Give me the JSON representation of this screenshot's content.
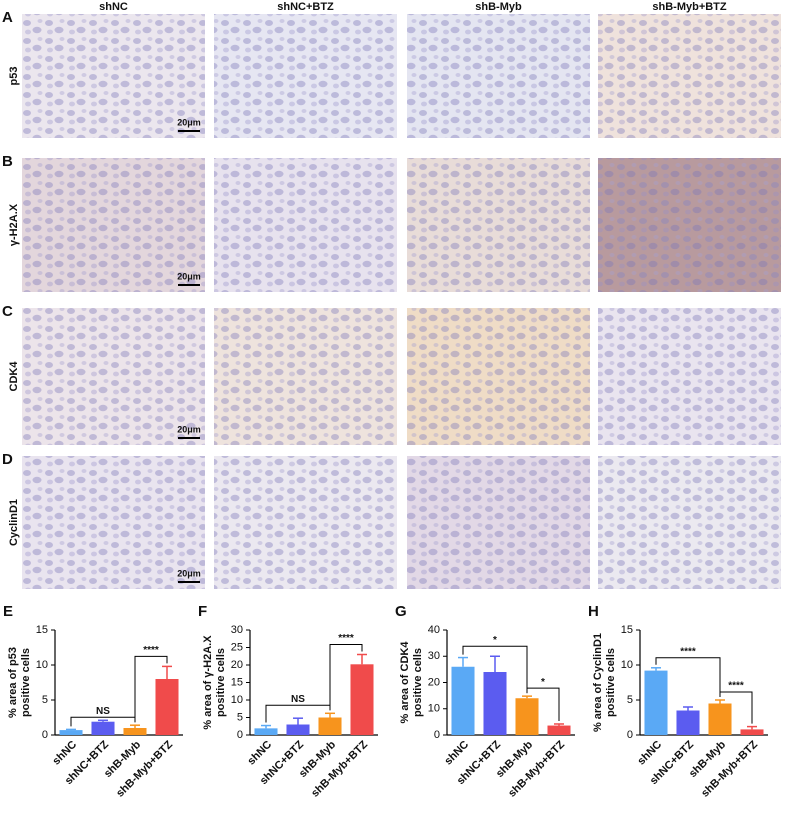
{
  "columns": [
    "shNC",
    "shNC+BTZ",
    "shB-Myb",
    "shB-Myb+BTZ"
  ],
  "rows": [
    {
      "letter": "A",
      "label": "p53",
      "scale_bar": "20μm"
    },
    {
      "letter": "B",
      "label": "γ-H2A.X",
      "scale_bar": "20μm"
    },
    {
      "letter": "C",
      "label": "CDK4",
      "scale_bar": "20μm"
    },
    {
      "letter": "D",
      "label": "CyclinD1",
      "scale_bar": "20μm"
    }
  ],
  "chart_data": [
    {
      "type": "bar",
      "panel": "E",
      "ylabel": [
        "% area of p53",
        "positive cells"
      ],
      "categories": [
        "shNC",
        "shNC+BTZ",
        "shB-Myb",
        "shB-Myb+BTZ"
      ],
      "values": [
        0.7,
        1.9,
        1.0,
        8.0
      ],
      "errors": [
        0.1,
        0.2,
        0.4,
        1.8
      ],
      "colors": [
        "#5aa9f5",
        "#5b5cf0",
        "#f7941d",
        "#f04b4b"
      ],
      "ylim": [
        0,
        15
      ],
      "yticks": [
        0,
        5,
        10,
        15
      ],
      "annotations": [
        "NS",
        "****"
      ]
    },
    {
      "type": "bar",
      "panel": "F",
      "ylabel": [
        "% area of γ-H2A.X",
        "positive cells"
      ],
      "categories": [
        "shNC",
        "shNC+BTZ",
        "shB-Myb",
        "shB-Myb+BTZ"
      ],
      "values": [
        1.9,
        3.0,
        5.0,
        20.2
      ],
      "errors": [
        0.8,
        1.8,
        1.2,
        2.8
      ],
      "colors": [
        "#5aa9f5",
        "#5b5cf0",
        "#f7941d",
        "#f04b4b"
      ],
      "ylim": [
        0,
        30
      ],
      "yticks": [
        0,
        5,
        10,
        15,
        20,
        25,
        30
      ],
      "annotations": [
        "NS",
        "****"
      ]
    },
    {
      "type": "bar",
      "panel": "G",
      "ylabel": [
        "% area of CDK4",
        "positive cells"
      ],
      "categories": [
        "shNC",
        "shNC+BTZ",
        "shB-Myb",
        "shB-Myb+BTZ"
      ],
      "values": [
        26,
        24,
        14,
        3.6
      ],
      "errors": [
        3.5,
        6,
        0.8,
        0.6
      ],
      "colors": [
        "#5aa9f5",
        "#5b5cf0",
        "#f7941d",
        "#f04b4b"
      ],
      "ylim": [
        0,
        40
      ],
      "yticks": [
        0,
        10,
        20,
        30,
        40
      ],
      "annotations": [
        "*",
        "*"
      ]
    },
    {
      "type": "bar",
      "panel": "H",
      "ylabel": [
        "% area of CyclinD1",
        "positive cells"
      ],
      "categories": [
        "shNC",
        "shNC+BTZ",
        "shB-Myb",
        "shB-Myb+BTZ"
      ],
      "values": [
        9.2,
        3.5,
        4.5,
        0.8
      ],
      "errors": [
        0.4,
        0.5,
        0.5,
        0.4
      ],
      "colors": [
        "#5aa9f5",
        "#5b5cf0",
        "#f7941d",
        "#f04b4b"
      ],
      "ylim": [
        0,
        15
      ],
      "yticks": [
        0,
        5,
        10,
        15
      ],
      "annotations": [
        "****",
        "****"
      ]
    }
  ]
}
